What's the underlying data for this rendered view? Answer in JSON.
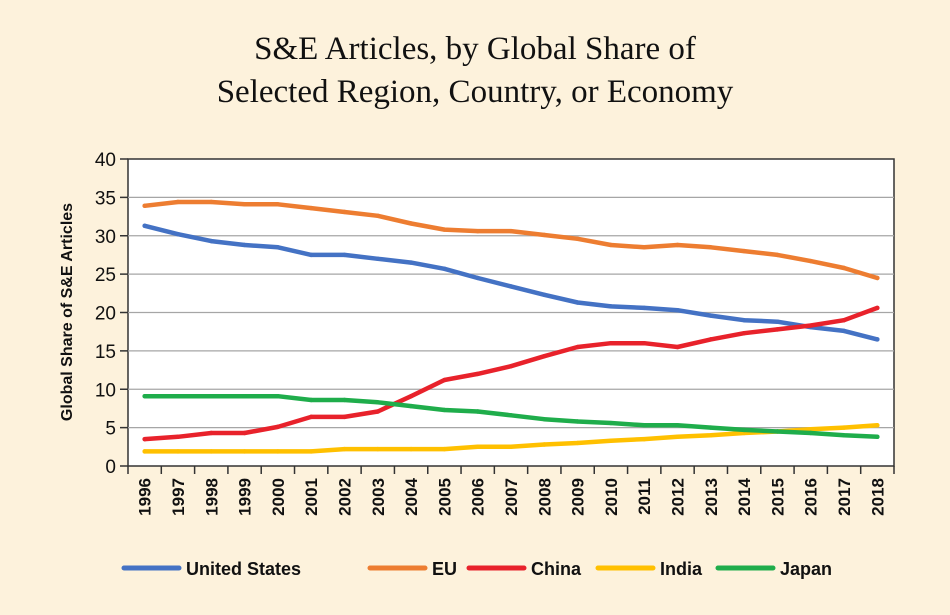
{
  "chart_data": {
    "type": "line",
    "title_lines": [
      "S&E Articles, by Global Share of",
      "Selected Region, Country, or Economy"
    ],
    "ylabel": "Global Share of S&E Articles",
    "xlabel": "",
    "ylim": [
      0,
      40
    ],
    "yticks": [
      "0",
      "5",
      "10",
      "15",
      "20",
      "25",
      "30",
      "35",
      "40"
    ],
    "grid": "horizontal",
    "legend_position": "bottom",
    "x": [
      "1996",
      "1997",
      "1998",
      "1999",
      "2000",
      "2001",
      "2002",
      "2003",
      "2004",
      "2005",
      "2006",
      "2007",
      "2008",
      "2009",
      "2010",
      "2011",
      "2012",
      "2013",
      "2014",
      "2015",
      "2016",
      "2017",
      "2018"
    ],
    "series": [
      {
        "name": "United States",
        "color": "#4472c4",
        "values": [
          31.3,
          30.2,
          29.3,
          28.8,
          28.5,
          27.5,
          27.5,
          27.0,
          26.5,
          25.7,
          24.5,
          23.4,
          22.3,
          21.3,
          20.8,
          20.6,
          20.3,
          19.6,
          19.0,
          18.8,
          18.1,
          17.6,
          16.5
        ]
      },
      {
        "name": "EU",
        "color": "#ed7d31",
        "values": [
          33.9,
          34.4,
          34.4,
          34.1,
          34.1,
          33.6,
          33.1,
          32.6,
          31.6,
          30.8,
          30.6,
          30.6,
          30.1,
          29.6,
          28.8,
          28.5,
          28.8,
          28.5,
          28.0,
          27.5,
          26.7,
          25.8,
          24.5
        ]
      },
      {
        "name": "China",
        "color": "#e8222b",
        "values": [
          3.5,
          3.8,
          4.3,
          4.3,
          5.1,
          6.4,
          6.4,
          7.1,
          9.1,
          11.2,
          12.0,
          13.0,
          14.3,
          15.5,
          16.0,
          16.0,
          15.5,
          16.5,
          17.3,
          17.8,
          18.3,
          19.0,
          20.6
        ]
      },
      {
        "name": "India",
        "color": "#ffc000",
        "values": [
          1.9,
          1.9,
          1.9,
          1.9,
          1.9,
          1.9,
          2.2,
          2.2,
          2.2,
          2.2,
          2.5,
          2.5,
          2.8,
          3.0,
          3.3,
          3.5,
          3.8,
          4.0,
          4.3,
          4.5,
          4.8,
          5.0,
          5.3
        ]
      },
      {
        "name": "Japan",
        "color": "#1fad4b",
        "values": [
          9.1,
          9.1,
          9.1,
          9.1,
          9.1,
          8.6,
          8.6,
          8.3,
          7.8,
          7.3,
          7.1,
          6.6,
          6.1,
          5.8,
          5.6,
          5.3,
          5.3,
          5.0,
          4.7,
          4.5,
          4.3,
          4.0,
          3.8
        ]
      }
    ]
  }
}
